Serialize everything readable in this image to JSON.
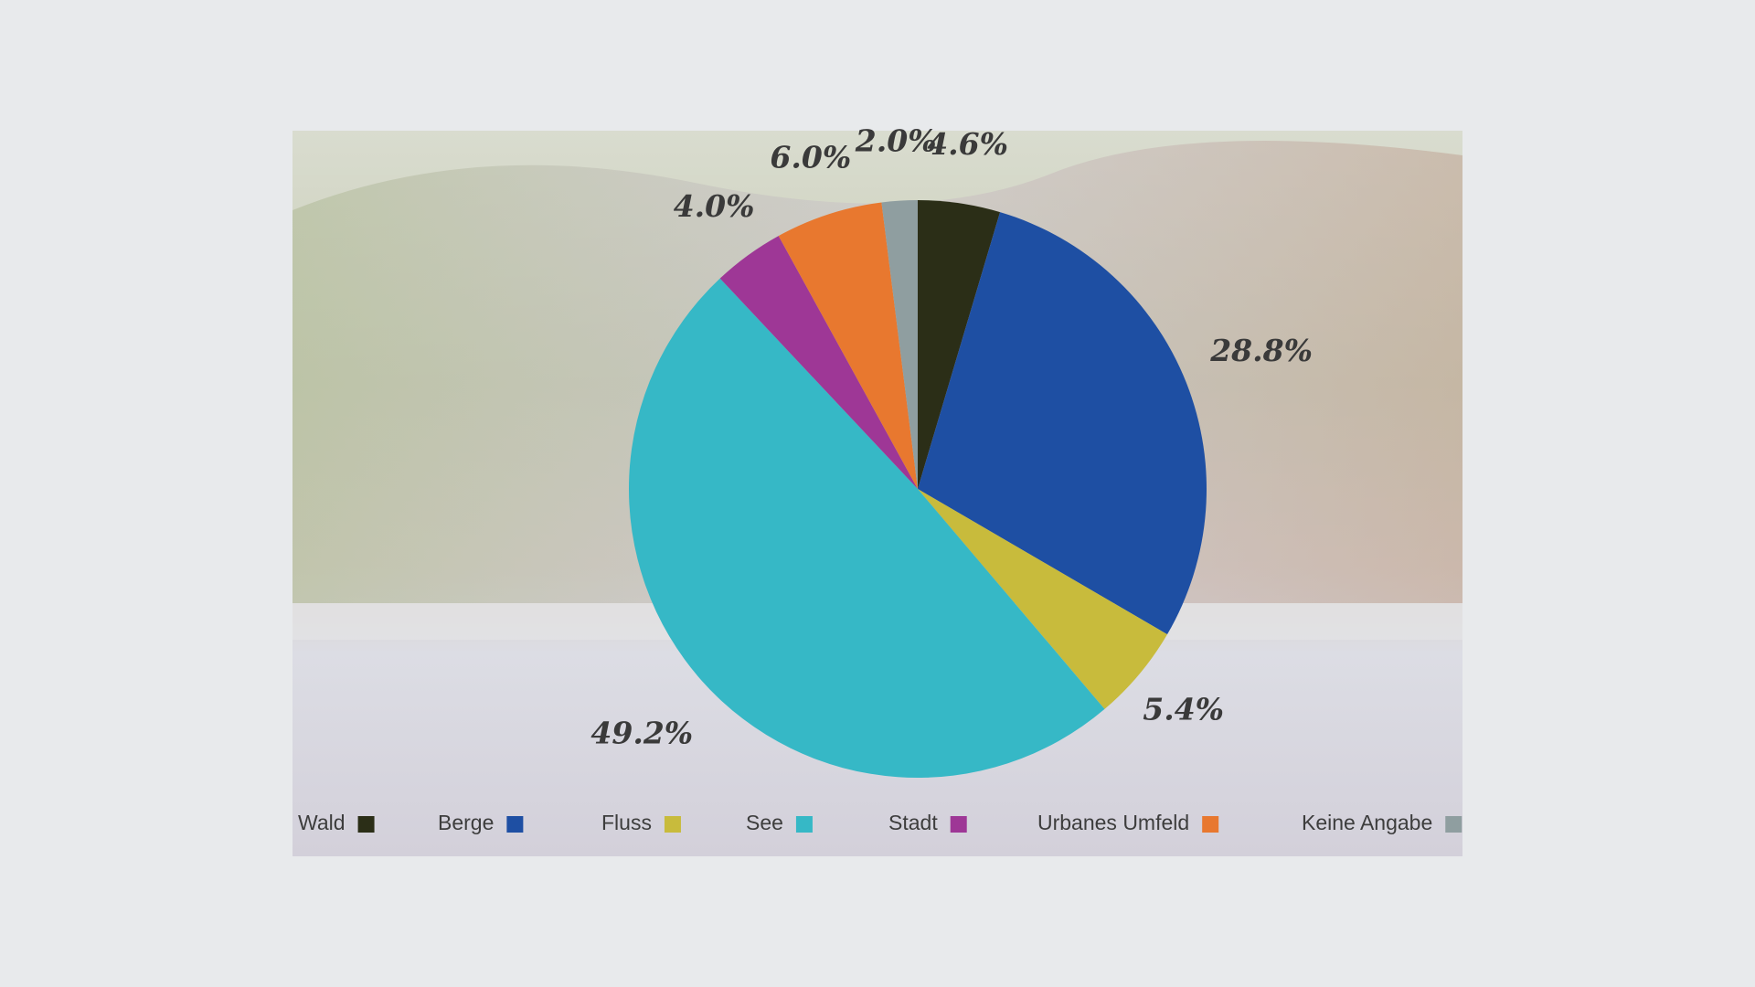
{
  "chart_data": {
    "type": "pie",
    "categories": [
      "Wald",
      "Berge",
      "Fluss",
      "See",
      "Stadt",
      "Urbanes Umfeld",
      "Keine Angabe"
    ],
    "values": [
      4.6,
      28.8,
      5.4,
      49.2,
      4.0,
      6.0,
      2.0
    ],
    "value_labels": [
      "4.6%",
      "28.8%",
      "5.4%",
      "49.2%",
      "4.0%",
      "6.0%",
      "2.0%"
    ],
    "colors": [
      "#2b2e17",
      "#1e4fa3",
      "#c8bb3c",
      "#36b8c6",
      "#9e3796",
      "#e8782f",
      "#8f9ea0"
    ],
    "legend": "bottom"
  }
}
